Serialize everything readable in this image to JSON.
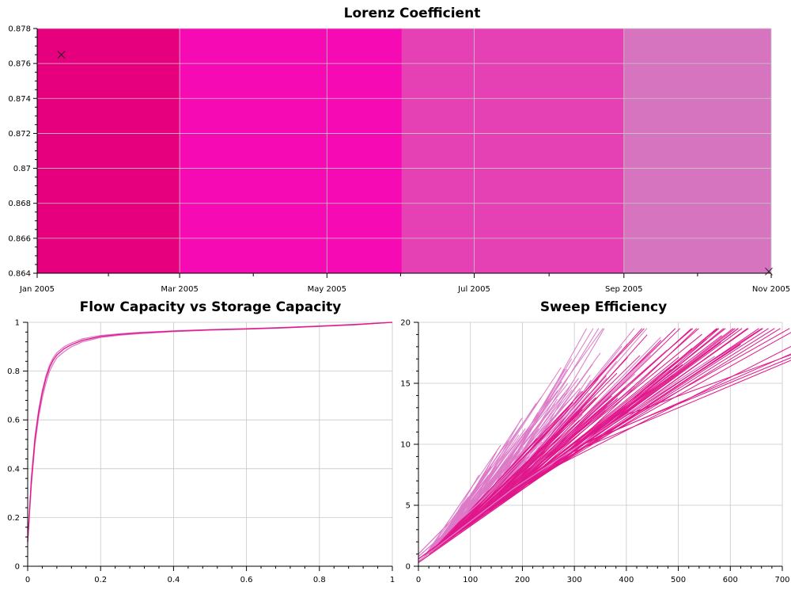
{
  "colors": {
    "background": "#ffffff",
    "grid": "#c8c8c8",
    "axis": "#000000",
    "band1": "#e6007e",
    "band2": "#f50ab4",
    "band3": "#e641b4",
    "band4": "#d674c0",
    "curve_light": "#dd7ac8",
    "curve_dark": "#e0168a"
  },
  "chart_data": [
    {
      "id": "lorenz",
      "type": "area",
      "title": "Lorenz Coefficient",
      "xlabel": "",
      "ylabel": "",
      "x_axis": "date",
      "xlim": [
        "2005-01-01",
        "2005-11-01"
      ],
      "ylim": [
        0.864,
        0.878
      ],
      "x_ticks": [
        {
          "x": "2005-01-01",
          "label": "Jan 2005"
        },
        {
          "x": "2005-03-01",
          "label": "Mar 2005"
        },
        {
          "x": "2005-05-01",
          "label": "May 2005"
        },
        {
          "x": "2005-07-01",
          "label": "Jul 2005"
        },
        {
          "x": "2005-09-01",
          "label": "Sep 2005"
        },
        {
          "x": "2005-11-01",
          "label": "Nov 2005"
        }
      ],
      "y_ticks": [
        "0.864",
        "0.866",
        "0.868",
        "0.87",
        "0.872",
        "0.874",
        "0.876",
        "0.878"
      ],
      "bands": [
        {
          "start": "2005-01-01",
          "end": "2005-03-01",
          "color": "#e6007e"
        },
        {
          "start": "2005-03-01",
          "end": "2005-06-01",
          "color": "#f50ab4"
        },
        {
          "start": "2005-06-01",
          "end": "2005-09-01",
          "color": "#e641b4"
        },
        {
          "start": "2005-09-01",
          "end": "2005-11-01",
          "color": "#d674c0"
        }
      ],
      "points": [
        {
          "x": "2005-01-11",
          "y": 0.8765
        },
        {
          "x": "2005-10-31",
          "y": 0.8641
        }
      ],
      "grid": true,
      "legend": "none"
    },
    {
      "id": "flow",
      "type": "line",
      "title": "Flow Capacity vs Storage Capacity",
      "xlabel": "",
      "ylabel": "",
      "xlim": [
        0,
        1
      ],
      "ylim": [
        0,
        1
      ],
      "x_ticks": [
        "0",
        "0.2",
        "0.4",
        "0.6",
        "0.8",
        "1"
      ],
      "y_ticks": [
        "0",
        "0.2",
        "0.4",
        "0.6",
        "0.8",
        "1"
      ],
      "series": [
        {
          "color": "#dd7ac8",
          "x": [
            0,
            0.01,
            0.02,
            0.03,
            0.04,
            0.05,
            0.06,
            0.07,
            0.08,
            0.1,
            0.12,
            0.15,
            0.2,
            0.25,
            0.3,
            0.4,
            0.5,
            0.6,
            0.7,
            0.8,
            0.9,
            1.0
          ],
          "y": [
            0.1,
            0.33,
            0.5,
            0.61,
            0.69,
            0.75,
            0.8,
            0.83,
            0.855,
            0.88,
            0.9,
            0.92,
            0.938,
            0.947,
            0.953,
            0.962,
            0.968,
            0.972,
            0.977,
            0.983,
            0.99,
            1.0
          ]
        },
        {
          "color": "#dd7ac8",
          "x": [
            0,
            0.01,
            0.02,
            0.03,
            0.04,
            0.05,
            0.06,
            0.07,
            0.08,
            0.1,
            0.12,
            0.15,
            0.2,
            0.25,
            0.3,
            0.4,
            0.5,
            0.6,
            0.7,
            0.8,
            0.9,
            1.0
          ],
          "y": [
            0.1,
            0.36,
            0.53,
            0.64,
            0.72,
            0.78,
            0.825,
            0.855,
            0.875,
            0.9,
            0.915,
            0.932,
            0.946,
            0.953,
            0.958,
            0.965,
            0.97,
            0.974,
            0.979,
            0.985,
            0.992,
            1.0
          ]
        },
        {
          "color": "#e0168a",
          "x": [
            0,
            0.01,
            0.02,
            0.03,
            0.04,
            0.05,
            0.06,
            0.07,
            0.08,
            0.1,
            0.12,
            0.15,
            0.2,
            0.25,
            0.3,
            0.4,
            0.5,
            0.6,
            0.7,
            0.8,
            0.9,
            1.0
          ],
          "y": [
            0.1,
            0.35,
            0.52,
            0.63,
            0.71,
            0.77,
            0.815,
            0.845,
            0.866,
            0.892,
            0.908,
            0.926,
            0.942,
            0.95,
            0.956,
            0.964,
            0.969,
            0.973,
            0.978,
            0.984,
            0.991,
            1.0
          ]
        }
      ],
      "grid": true,
      "legend": "none"
    },
    {
      "id": "sweep",
      "type": "line",
      "title": "Sweep Efficiency",
      "xlabel": "",
      "ylabel": "",
      "xlim": [
        0,
        700
      ],
      "ylim": [
        0,
        20
      ],
      "x_ticks": [
        "0",
        "100",
        "200",
        "300",
        "400",
        "500",
        "600",
        "700"
      ],
      "y_ticks": [
        "0",
        "5",
        "10",
        "15",
        "20"
      ],
      "series": [
        {
          "color": "#e0168a",
          "x": [
            0,
            250,
            620
          ],
          "y": [
            0.3,
            7.8,
            18.2
          ]
        },
        {
          "color": "#e0168a",
          "x": [
            0,
            330,
            490
          ],
          "y": [
            0.6,
            10.8,
            15.7
          ]
        },
        {
          "color": "#dd7ac8",
          "x": [
            0,
            180,
            570
          ],
          "y": [
            0.4,
            6.3,
            17.2
          ]
        },
        {
          "color": "#dd7ac8",
          "x": [
            0,
            120,
            300
          ],
          "y": [
            0.8,
            5.3,
            13.0
          ]
        },
        {
          "color": "#dd7ac8",
          "x": [
            0,
            60,
            150
          ],
          "y": [
            1.0,
            3.6,
            8.2
          ]
        }
      ],
      "segments": {
        "light": {
          "color": "#dd7ac8",
          "count": 140,
          "x_start": [
            10,
            280
          ],
          "x_end": [
            20,
            330
          ],
          "y_slope_start": 0.034,
          "spread_top": 0.045
        },
        "dark": {
          "color": "#e0168a",
          "count": 90,
          "x_start": [
            20,
            480
          ],
          "x_end": [
            80,
            620
          ],
          "y_slope_start": 0.03,
          "spread_top": 0.025
        }
      },
      "grid": true,
      "legend": "none"
    }
  ]
}
